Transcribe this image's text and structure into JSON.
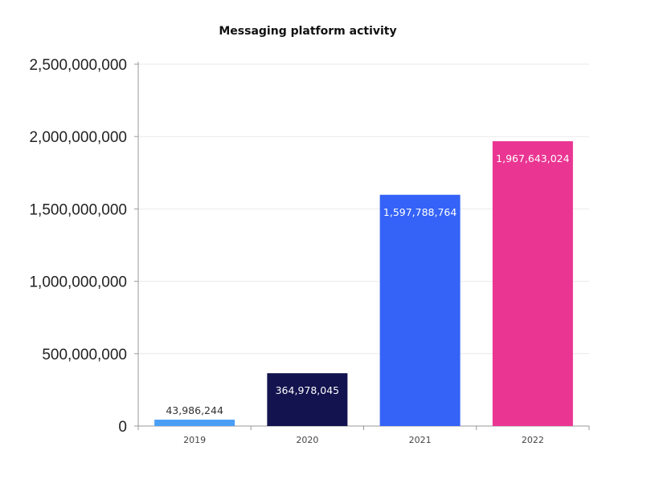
{
  "chart_data": {
    "type": "bar",
    "title": "Messaging platform activity",
    "categories": [
      "2019",
      "2020",
      "2021",
      "2022"
    ],
    "values": [
      43986244,
      364978045,
      1597788764,
      1967643024
    ],
    "value_labels": [
      "43,986,244",
      "364,978,045",
      "1,597,788,764",
      "1,967,643,024"
    ],
    "bar_colors": [
      "#4a9ff5",
      "#13134f",
      "#3563f7",
      "#ea3592"
    ],
    "label_colors": [
      "#333333",
      "#ffffff",
      "#ffffff",
      "#ffffff"
    ],
    "ylim": [
      0,
      2500000000
    ],
    "yticks": [
      0,
      500000000,
      1000000000,
      1500000000,
      2000000000,
      2500000000
    ],
    "ytick_labels": [
      "0",
      "500,000,000",
      "1,000,000,000",
      "1,500,000,000",
      "2,000,000,000",
      "2,500,000,000"
    ],
    "xlabel": "",
    "ylabel": "",
    "grid": true,
    "legend": "none"
  }
}
